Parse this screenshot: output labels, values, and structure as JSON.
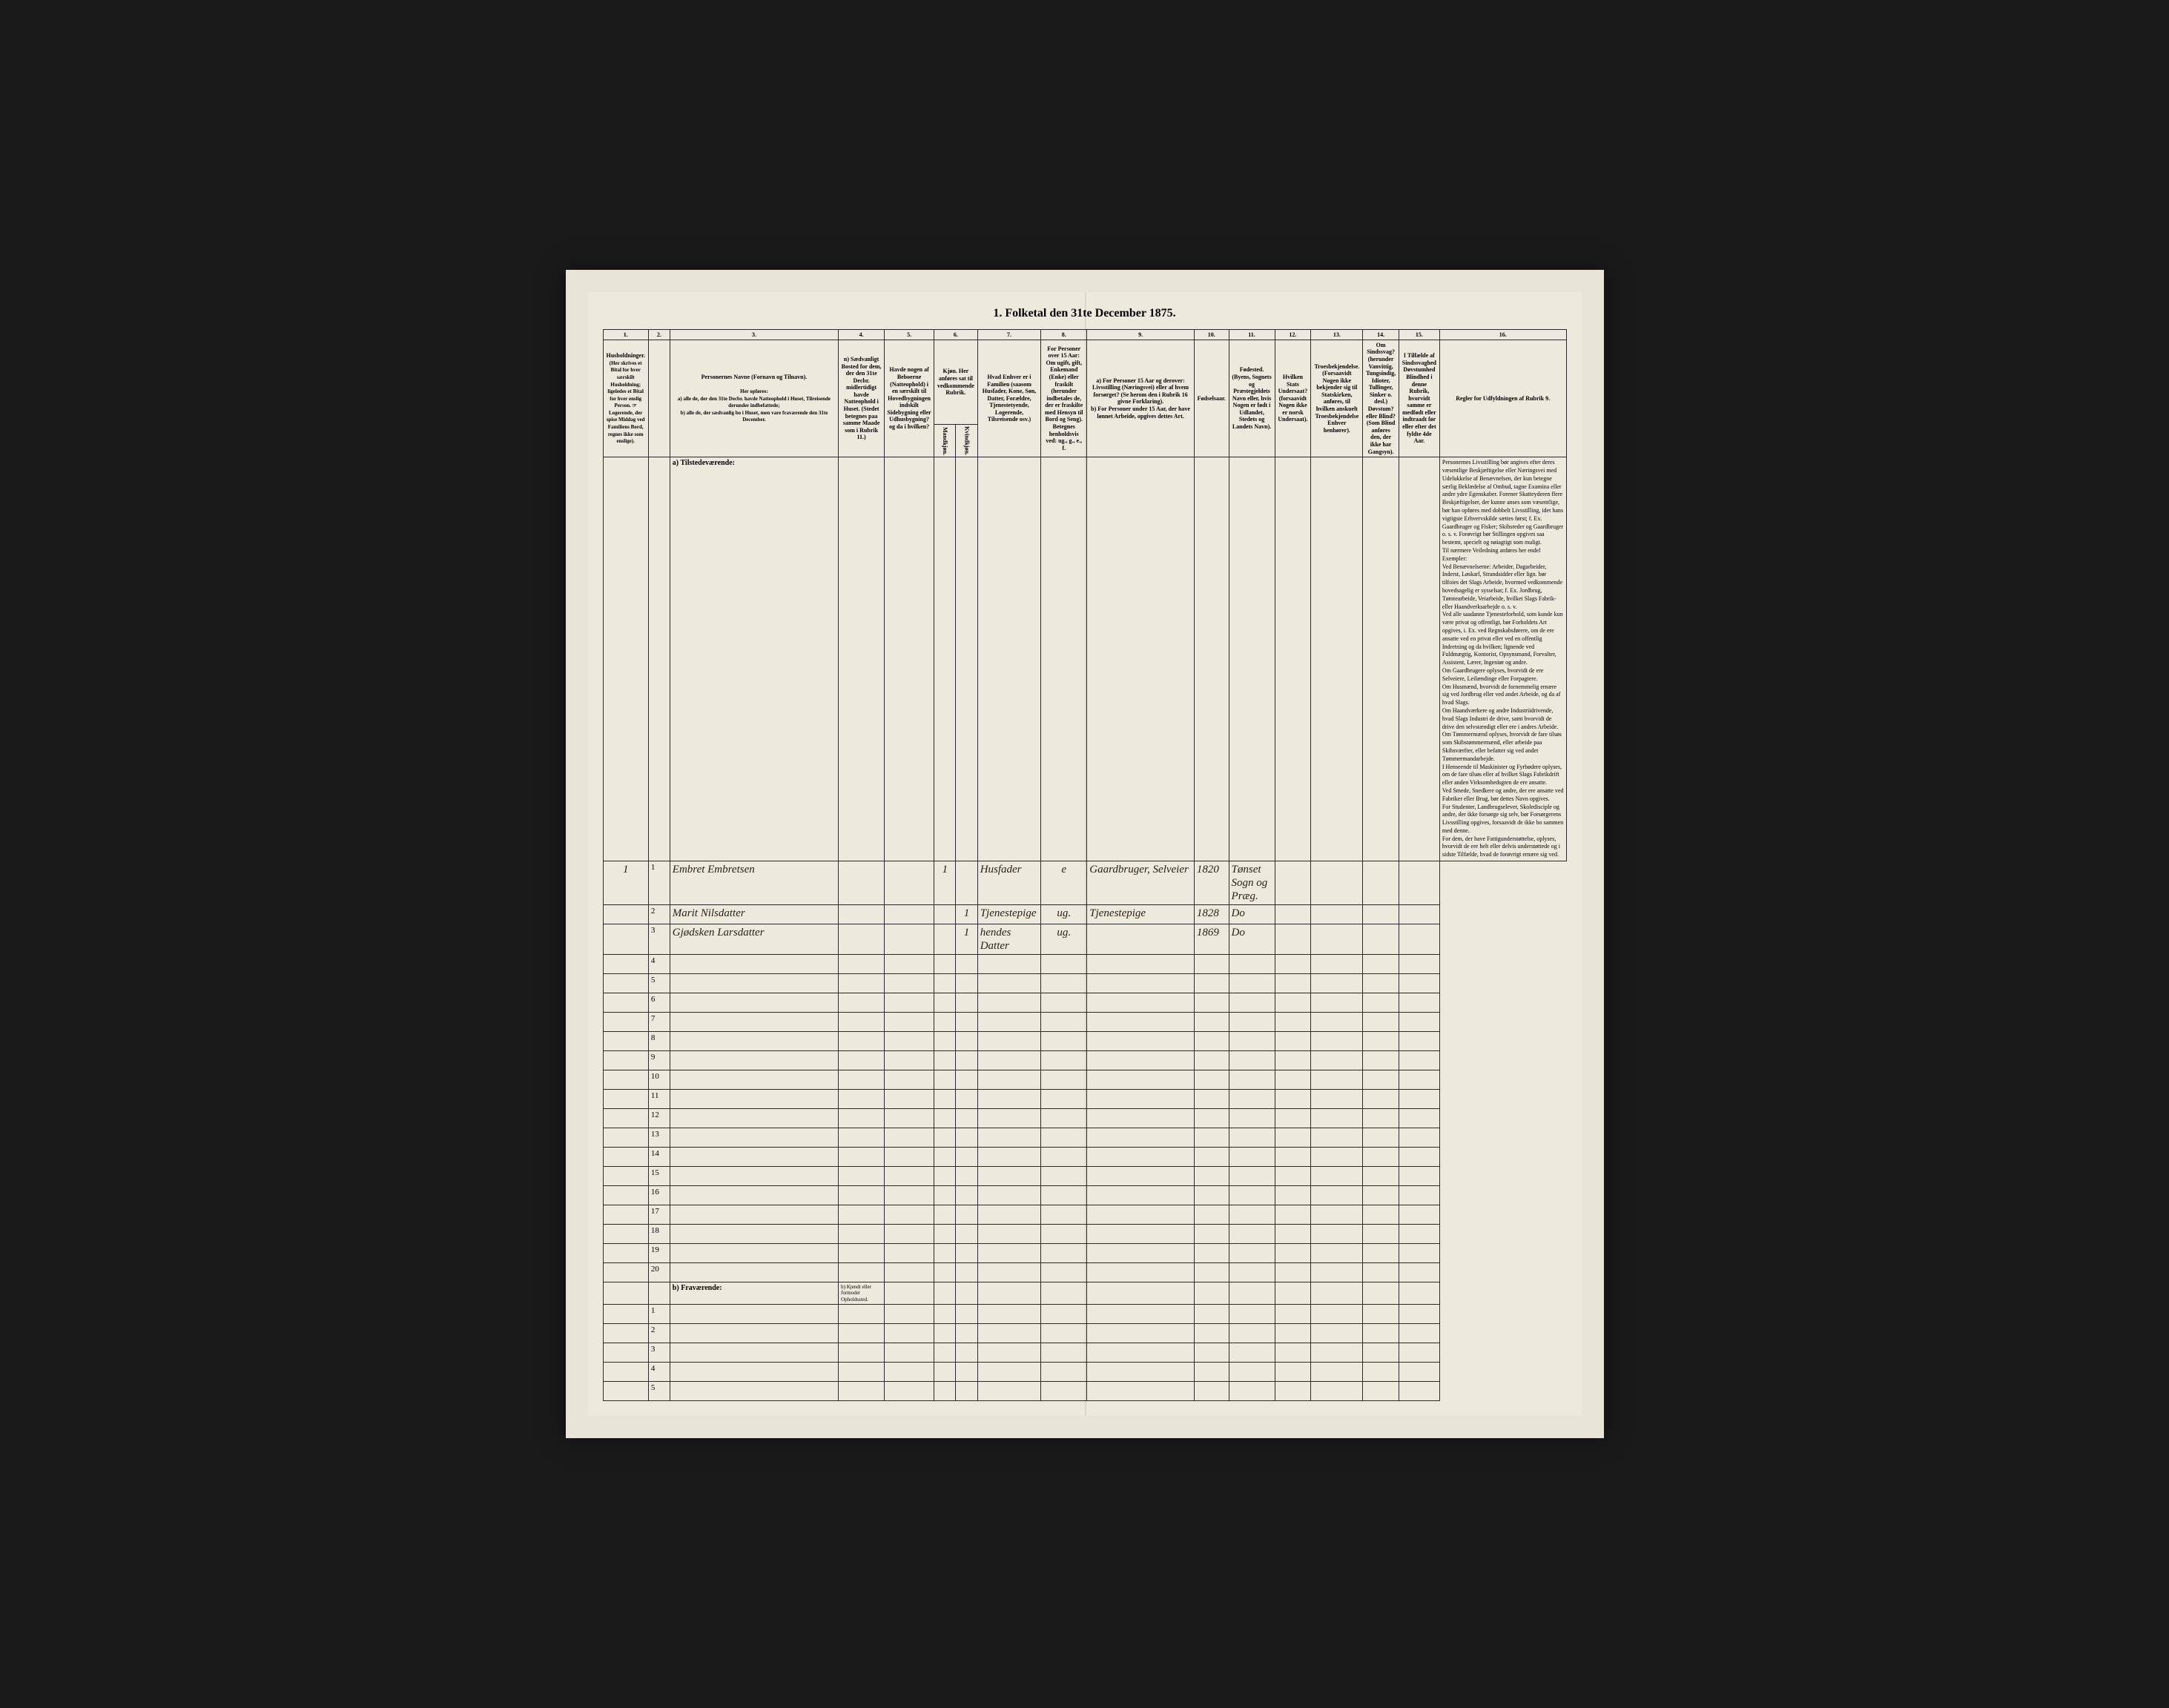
{
  "page": {
    "title": "1. Folketal den 31te December 1875.",
    "background_color": "#ede9dd",
    "frame_color": "#e8e4d8",
    "border_color": "#2a2a2a",
    "handwriting_color": "#2a2215"
  },
  "column_numbers": [
    "1.",
    "2.",
    "3.",
    "4.",
    "5.",
    "6.",
    "7.",
    "8.",
    "9.",
    "10.",
    "11.",
    "12.",
    "13.",
    "14.",
    "15.",
    "16."
  ],
  "headers": {
    "col1": "Husholdninger.",
    "col1_sub": "(Her skrives et Bital for hver særskilt Husholdning; ligeledes et Bital for hver enslig Person. ☞ Logerende, der spise Middag ved Familiens Bord, regnes ikke som enslige).",
    "col3": "Personernes Navne (Fornavn og Tilnavn).",
    "col3_sub_a": "a) alle de, der den 31te Decbr. havde Natteophold i Huset, Tilreisende derunder indbefattede;",
    "col3_sub_b": "b) alle de, der sædvanlig bo i Huset, men vare fraværende den 31te December.",
    "col3_sub_intro": "Her opføres:",
    "col4": "n) Sædvanligt Bosted for dem, der den 31te Decbr. midlertidigt havde Natteophold i Huset. (Stedet betegnes paa samme Maade som i Rubrik 11.)",
    "col5": "Havde nogen af Beboerne (Natteophold) i en særskilt til Hovedbygningen indskilt Sidebygning eller Udhusbygning? og da i hvilken?",
    "col6": "Kjøn. Her anføres sat til vedkommende Rubrik.",
    "col6_sub_m": "Mandkjøn.",
    "col6_sub_k": "Kvindkjøn.",
    "col7": "Hvad Enhver er i Familien (saasom Husfader, Kone, Søn, Datter, Forældre, Tjenestetyende, Logerende, Tilsreisende osv.)",
    "col8": "For Personer over 15 Aar: Om ugift, gift, Enkemand (Enke) eller fraskilt (herunder indbetales de, der er fraskilte med Hensyn til Bord og Seng). Betegnes henholdsvis ved: ug., g., e., f.",
    "col9": "a) For Personer 15 Aar og derover: Livsstilling (Næringsvei) eller af hvem forsørget? (Se herom den i Rubrik 16 givne Forklaring).",
    "col9_b": "b) For Personer under 15 Aar, der have lønnet Arbeide, opgives dettes Art.",
    "col10": "Fødselsaar.",
    "col11": "Fødested.",
    "col11_sub": "(Byens, Sognets og Præstegjeldets Navn eller, hvis Nogen er født i Udlandet, Stedets og Landets Navn).",
    "col12": "Hvilken Stats Undersaat?",
    "col12_sub": "(forsaavidt Nogen ikke er norsk Undersaat).",
    "col13": "Troesbekjendelse.",
    "col13_sub": "(Forsaavidt Nogen ikke bekjender sig til Statskirken, anføres, til hvilken anskuelt Troesbekjendelse Enhver henhører).",
    "col14": "Om Sindssvag?",
    "col14_sub": "(herunder Vanvittig, Tungsindig, Idioter, Tullinger, Sinker o. desl.) Døvstum? eller Blind? (Som Blind anføres den, der ikke har Gangsyn).",
    "col15": "I Tilfælde af Sindssvaghed Døvstumhed Blindhed i denne Rubrik, hvorvidt samme er medfødt eller indtraadt før eller efter det fyldte 4de Aar.",
    "col16": "Regler for Udfyldningen af Rubrik 9."
  },
  "section_labels": {
    "tilstedevaerende": "a) Tilstedeværende:",
    "fravaerende": "b) Fraværende:",
    "fravaerende_col4": "b) Kjendt eller formodet Opholdssted."
  },
  "household_number": "1",
  "rows_present": [
    {
      "num": "1",
      "name": "Embret Embretsen",
      "sex_m": "1",
      "sex_k": "",
      "family": "Husfader",
      "marital": "e",
      "occupation": "Gaardbruger, Selveier",
      "birth_year": "1820",
      "birthplace": "Tønset Sogn og Præg."
    },
    {
      "num": "2",
      "name": "Marit Nilsdatter",
      "sex_m": "",
      "sex_k": "1",
      "family": "Tjenestepige",
      "marital": "ug.",
      "occupation": "Tjenestepige",
      "birth_year": "1828",
      "birthplace": "Do"
    },
    {
      "num": "3",
      "name": "Gjødsken Larsdatter",
      "sex_m": "",
      "sex_k": "1",
      "family": "hendes Datter",
      "marital": "ug.",
      "occupation": "",
      "birth_year": "1869",
      "birthplace": "Do"
    },
    {
      "num": "4"
    },
    {
      "num": "5"
    },
    {
      "num": "6"
    },
    {
      "num": "7"
    },
    {
      "num": "8"
    },
    {
      "num": "9"
    },
    {
      "num": "10"
    },
    {
      "num": "11"
    },
    {
      "num": "12"
    },
    {
      "num": "13"
    },
    {
      "num": "14"
    },
    {
      "num": "15"
    },
    {
      "num": "16"
    },
    {
      "num": "17"
    },
    {
      "num": "18"
    },
    {
      "num": "19"
    },
    {
      "num": "20"
    }
  ],
  "rows_absent": [
    {
      "num": "1"
    },
    {
      "num": "2"
    },
    {
      "num": "3"
    },
    {
      "num": "4"
    },
    {
      "num": "5"
    }
  ],
  "rules_text": {
    "title": "Regler for Udfyldningen af Rubrik 9.",
    "p1": "Personernes Livsstilling bør angives efter deres væsentlige Beskjæftigelse eller Næringsvei med Udelukkelse af Benævnelsen, der kun betegne særlig Beklædelse af Ombud, tagne Examina eller andre ydre Egenskaber. Forener Skatteyderen flere Beskjæftigelser, der kunne anses som væsentlige, bør han opføres med dobbelt Livsstilling, idet hans vigtigste Erhvervskilde sættes først; f. Ex. Gaardbruger og Fisker; Skibsreder og Gaardbruger o. s. v. Forøvrigt bør Stillingen opgives saa bestemt, specielt og nøiagtigt som muligt.",
    "p2": "Til nærmere Veiledning anføres her endel Exempler:",
    "p3": "Ved Benævnelserne: Arbeider, Dagarbeider, Inderst, Løskarl, Strandsidder eller lign. bør tilfoies det Slags Arbeide, hvormed vedkommende hovedsagelig er sysselsat; f. Ex. Jordbrug, Tømtearbeide, Veiarbeide, hvilket Slags Fabrik- eller Haandverksarbejde o. s. v.",
    "p4": "Ved alle saadanne Tjenesteforhold, som kunde kun være privat og offentligt, bør Forholdets Art opgives, i. Ex. ved Regnskabsførere, om de ere ansatte ved en privat eller ved en offentlig Indretning og da hvilken; lignende ved Fuldmægtig, Kontorist, Opsynsmand, Forvalter, Assistent, Lærer, Ingeniør og andre.",
    "p5": "Om Gaardbrugere oplyses, hvorvidt de ere Selveiere, Leilændinge eller Forpagtere.",
    "p6": "Om Husmænd, hvorvidt de fornemmelig ernære sig ved Jordbrug eller ved andet Arbeide, og da af hvad Slags.",
    "p7": "Om Haandværkere og andre Industriidrivende, hvad Slags Industri de drive, samt hvorvidt de drive den selvstændigt eller ere i andres Arbeide.",
    "p8": "Om Tømmermænd oplyses, hvorvidt de fare tilsøs som Skibstømmermænd, eller arbeide paa Skibsværfter, eller befatter sig ved andet Tømmermandarbejde.",
    "p9": "I Henseende til Maskinister og Fyrbødere oplyses, om de fare tilsøs eller af hvilket Slags Fabrikdrift eller anden Virksomhedsgren de ere ansatte.",
    "p10": "Ved Smede, Snedkere og andre, der ere ansatte ved Fabriker eller Brug, bør dettes Navn opgives.",
    "p11": "For Studenter, Landbrugselever, Skoledisciple og andre, der ikke forsørge sig selv, bør Forsørgerens Livsstilling opgives, forsaavidt de ikke bo sammen med denne.",
    "p12": "For dem, der have Fattigunderstøttelse, oplyses, hvorvidt de ere helt eller delvis understøttede og i sidste Tilfælde, hvad de forøvrigt ernære sig ved."
  }
}
